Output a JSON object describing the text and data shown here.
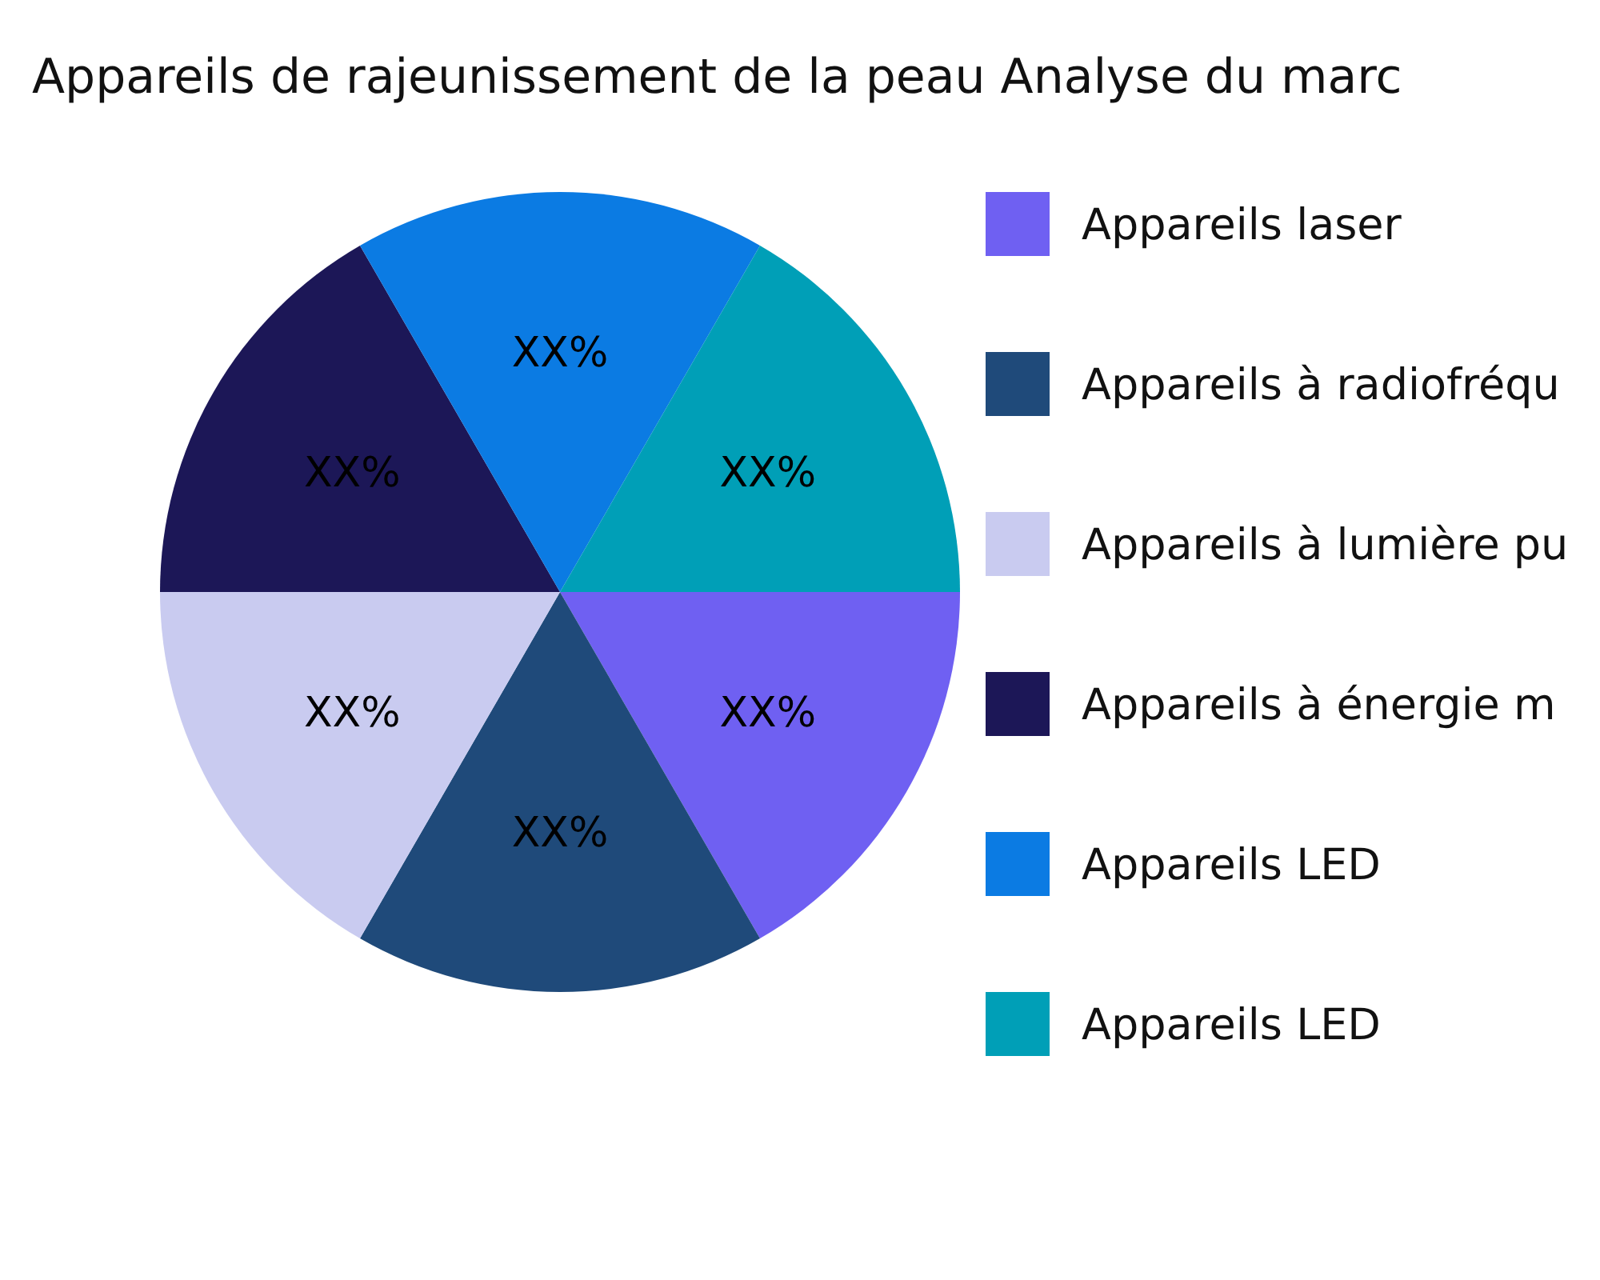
{
  "chart_data": {
    "type": "pie",
    "title": "Appareils de rajeunissement de la peau Analyse du marc",
    "categories": [
      "Appareils laser",
      "Appareils à radiofréqu",
      "Appareils à lumière pu",
      "Appareils à énergie m",
      "Appareils LED",
      "Appareils LED"
    ],
    "values": [
      16.67,
      16.67,
      16.67,
      16.67,
      16.67,
      16.67
    ],
    "colors": [
      "#6f60f2",
      "#1f4a7a",
      "#c9cbf0",
      "#1c1757",
      "#0b7be3",
      "#009fb7"
    ],
    "value_labels": [
      "XX%",
      "XX%",
      "XX%",
      "XX%",
      "XX%",
      "XX%"
    ],
    "legend": "right"
  }
}
